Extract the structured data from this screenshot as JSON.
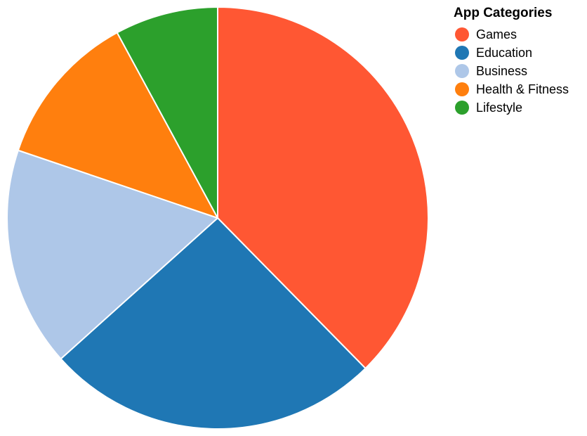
{
  "chart_data": {
    "type": "pie",
    "title": "",
    "legend_title": "App Categories",
    "legend_placement": "top-right",
    "start_angle_deg": 0,
    "direction": "clockwise",
    "categories": [
      "Games",
      "Education",
      "Business",
      "Health & Fitness",
      "Lifestyle"
    ],
    "values": [
      38,
      26,
      17,
      12,
      8
    ],
    "colors": [
      "#FF5733",
      "#1F77B4",
      "#AEC7E8",
      "#FF7F0E",
      "#2CA02C"
    ]
  }
}
